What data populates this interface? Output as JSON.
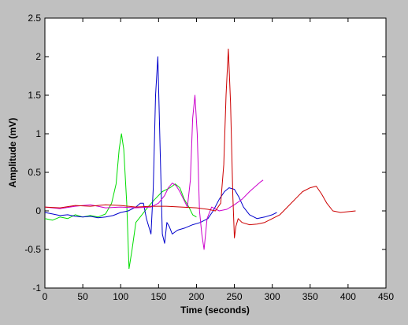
{
  "chart_data": {
    "type": "line",
    "title": "",
    "xlabel": "Time (seconds)",
    "ylabel": "Amplitude (mV)",
    "xlim": [
      0,
      450
    ],
    "ylim": [
      -1,
      2.5
    ],
    "x_ticks": [
      0,
      50,
      100,
      150,
      200,
      250,
      300,
      350,
      400,
      450
    ],
    "y_ticks": [
      -1,
      -0.5,
      0,
      0.5,
      1,
      1.5,
      2,
      2.5
    ],
    "x_tick_labels": [
      "0",
      "50",
      "100",
      "150",
      "200",
      "250",
      "300",
      "350",
      "400",
      "450"
    ],
    "y_tick_labels": [
      "-1",
      "-0.5",
      "0",
      "0.5",
      "1",
      "1.5",
      "2",
      "2.5"
    ],
    "grid": false,
    "legend": false,
    "series": [
      {
        "color": "#00dd00",
        "x": [
          0,
          10,
          20,
          30,
          40,
          50,
          60,
          70,
          80,
          88,
          94,
          98,
          101,
          104,
          108,
          111,
          115,
          120,
          128,
          136,
          145,
          155,
          165,
          172,
          178,
          184,
          190,
          195,
          200
        ],
        "y": [
          -0.1,
          -0.12,
          -0.08,
          -0.1,
          -0.05,
          -0.08,
          -0.06,
          -0.08,
          -0.04,
          0.1,
          0.35,
          0.8,
          1.0,
          0.8,
          0.1,
          -0.75,
          -0.5,
          -0.15,
          -0.05,
          0.05,
          0.15,
          0.25,
          0.3,
          0.35,
          0.3,
          0.15,
          0.05,
          -0.05,
          -0.08
        ]
      },
      {
        "color": "#0000cc",
        "x": [
          0,
          10,
          20,
          30,
          40,
          50,
          60,
          70,
          80,
          90,
          100,
          110,
          120,
          126,
          130,
          134,
          137,
          140,
          143,
          146,
          149,
          152,
          155,
          158,
          161,
          164,
          168,
          175,
          185,
          195,
          205,
          215,
          222,
          230,
          237,
          243,
          250,
          256,
          262,
          270,
          280,
          290,
          300,
          306
        ],
        "y": [
          -0.02,
          -0.04,
          -0.06,
          -0.05,
          -0.07,
          -0.08,
          -0.07,
          -0.09,
          -0.08,
          -0.06,
          -0.02,
          0.0,
          0.05,
          0.1,
          0.1,
          -0.1,
          -0.2,
          -0.3,
          0.3,
          1.5,
          2.0,
          0.8,
          -0.3,
          -0.42,
          -0.15,
          -0.2,
          -0.3,
          -0.25,
          -0.22,
          -0.18,
          -0.15,
          -0.1,
          0.0,
          0.15,
          0.25,
          0.3,
          0.28,
          0.18,
          0.05,
          -0.05,
          -0.1,
          -0.08,
          -0.05,
          -0.02
        ]
      },
      {
        "color": "#cc00cc",
        "x": [
          0,
          20,
          40,
          60,
          80,
          100,
          120,
          140,
          150,
          158,
          163,
          168,
          173,
          178,
          183,
          188,
          192,
          195,
          198,
          201,
          204,
          207,
          210,
          214,
          220,
          230,
          240,
          250,
          260,
          270,
          278,
          285,
          288
        ],
        "y": [
          0.05,
          0.03,
          0.06,
          0.08,
          0.04,
          0.05,
          0.04,
          0.05,
          0.1,
          0.2,
          0.3,
          0.36,
          0.33,
          0.25,
          0.15,
          0.05,
          0.4,
          1.2,
          1.5,
          1.0,
          0.0,
          -0.3,
          -0.5,
          -0.1,
          0.05,
          0.0,
          0.02,
          0.08,
          0.15,
          0.25,
          0.32,
          0.38,
          0.4
        ]
      },
      {
        "color": "#cc0000",
        "x": [
          0,
          20,
          40,
          60,
          80,
          100,
          120,
          140,
          160,
          180,
          200,
          215,
          225,
          232,
          236,
          239,
          242,
          245,
          248,
          250,
          252,
          255,
          260,
          270,
          280,
          290,
          300,
          310,
          320,
          330,
          340,
          350,
          358,
          365,
          372,
          380,
          390,
          400,
          410
        ],
        "y": [
          0.05,
          0.04,
          0.07,
          0.06,
          0.08,
          0.07,
          0.05,
          0.06,
          0.06,
          0.05,
          0.04,
          0.02,
          0.0,
          0.1,
          0.6,
          1.5,
          2.1,
          1.4,
          0.2,
          -0.35,
          -0.2,
          -0.1,
          -0.15,
          -0.18,
          -0.17,
          -0.15,
          -0.1,
          -0.05,
          0.05,
          0.15,
          0.25,
          0.3,
          0.32,
          0.22,
          0.1,
          0.0,
          -0.02,
          -0.01,
          0.0
        ]
      }
    ]
  }
}
